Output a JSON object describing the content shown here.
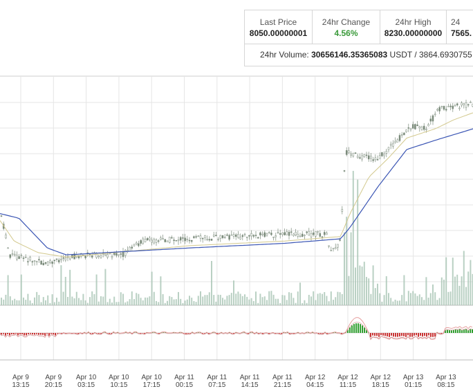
{
  "stats": {
    "last_price_label": "Last Price",
    "last_price_value": "8050.00000001",
    "change_label": "24hr Change",
    "change_value": "4.56%",
    "high_label": "24hr High",
    "high_value": "8230.00000000",
    "low_label": "24",
    "low_value": "7565.",
    "volume_label": "24hr Volume:",
    "volume_value": "30656146.35365083",
    "volume_unit": "USDT / 3864.6930755"
  },
  "colors": {
    "grid": "#e5e5e5",
    "candle": "#7a8a7a",
    "ma_slow": "#3a55b4",
    "ma_fast": "#d2c88c",
    "volume": "#a8c4b4",
    "macd_pos": "#2e9e2e",
    "macd_neg": "#c83232",
    "change_up": "#3a9a3a"
  },
  "chart_data": {
    "type": "candlestick",
    "x_ticks": [
      {
        "date": "Apr 9",
        "time": "13:15"
      },
      {
        "date": "Apr 9",
        "time": "20:15"
      },
      {
        "date": "Apr 10",
        "time": "03:15"
      },
      {
        "date": "Apr 10",
        "time": "10:15"
      },
      {
        "date": "Apr 10",
        "time": "17:15"
      },
      {
        "date": "Apr 11",
        "time": "00:15"
      },
      {
        "date": "Apr 11",
        "time": "07:15"
      },
      {
        "date": "Apr 11",
        "time": "14:15"
      },
      {
        "date": "Apr 11",
        "time": "21:15"
      },
      {
        "date": "Apr 12",
        "time": "04:15"
      },
      {
        "date": "Apr 12",
        "time": "11:15"
      },
      {
        "date": "Apr 12",
        "time": "18:15"
      },
      {
        "date": "Apr 13",
        "time": "01:15"
      },
      {
        "date": "Apr 13",
        "time": "08:15"
      }
    ],
    "price_path": [
      [
        0,
        0.58
      ],
      [
        0.02,
        0.78
      ],
      [
        0.06,
        0.8
      ],
      [
        0.1,
        0.82
      ],
      [
        0.14,
        0.79
      ],
      [
        0.2,
        0.78
      ],
      [
        0.26,
        0.78
      ],
      [
        0.3,
        0.72
      ],
      [
        0.4,
        0.71
      ],
      [
        0.5,
        0.7
      ],
      [
        0.6,
        0.69
      ],
      [
        0.69,
        0.69
      ],
      [
        0.7,
        0.77
      ],
      [
        0.72,
        0.72
      ],
      [
        0.73,
        0.33
      ],
      [
        0.76,
        0.35
      ],
      [
        0.8,
        0.36
      ],
      [
        0.84,
        0.28
      ],
      [
        0.87,
        0.22
      ],
      [
        0.9,
        0.23
      ],
      [
        0.93,
        0.14
      ],
      [
        1.0,
        0.12
      ]
    ],
    "ma_slow_path": [
      [
        0,
        0.6
      ],
      [
        0.04,
        0.62
      ],
      [
        0.1,
        0.75
      ],
      [
        0.14,
        0.78
      ],
      [
        0.4,
        0.75
      ],
      [
        0.6,
        0.73
      ],
      [
        0.72,
        0.71
      ],
      [
        0.74,
        0.66
      ],
      [
        0.8,
        0.48
      ],
      [
        0.86,
        0.32
      ],
      [
        0.92,
        0.28
      ],
      [
        1.0,
        0.23
      ]
    ],
    "ma_fast_path": [
      [
        0,
        0.63
      ],
      [
        0.03,
        0.72
      ],
      [
        0.08,
        0.77
      ],
      [
        0.14,
        0.79
      ],
      [
        0.4,
        0.74
      ],
      [
        0.6,
        0.72
      ],
      [
        0.72,
        0.7
      ],
      [
        0.74,
        0.6
      ],
      [
        0.78,
        0.44
      ],
      [
        0.82,
        0.36
      ],
      [
        0.86,
        0.27
      ],
      [
        0.92,
        0.23
      ],
      [
        0.96,
        0.19
      ],
      [
        1.0,
        0.16
      ]
    ]
  }
}
